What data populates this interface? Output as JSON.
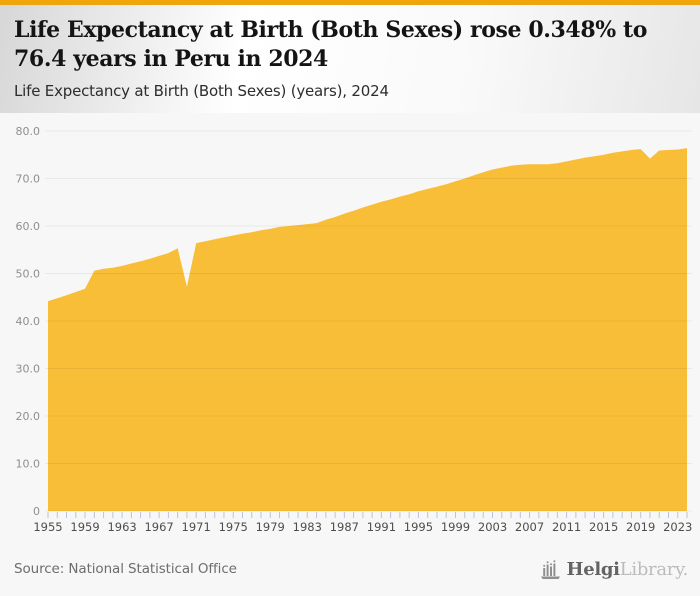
{
  "accent_color": "#efa50b",
  "header": {
    "title_lines": [
      "Life Expectancy at Birth (Both Sexes) rose 0.348% to",
      "76.4 years in Peru in 2024"
    ],
    "subtitle": "Life Expectancy at Birth (Both Sexes) (years), 2024"
  },
  "chart_data": {
    "type": "area",
    "title": "Life Expectancy at Birth (Both Sexes) rose 0.348% to 76.4 years in Peru in 2024",
    "series_name": "Life Expectancy at Birth (Both Sexes) (years)",
    "x": [
      1955,
      1956,
      1957,
      1958,
      1959,
      1960,
      1961,
      1962,
      1963,
      1964,
      1965,
      1966,
      1967,
      1968,
      1969,
      1970,
      1971,
      1972,
      1973,
      1974,
      1975,
      1976,
      1977,
      1978,
      1979,
      1980,
      1981,
      1982,
      1983,
      1984,
      1985,
      1986,
      1987,
      1988,
      1989,
      1990,
      1991,
      1992,
      1993,
      1994,
      1995,
      1996,
      1997,
      1998,
      1999,
      2000,
      2001,
      2002,
      2003,
      2004,
      2005,
      2006,
      2007,
      2008,
      2009,
      2010,
      2011,
      2012,
      2013,
      2014,
      2015,
      2016,
      2017,
      2018,
      2019,
      2020,
      2021,
      2022,
      2023,
      2024
    ],
    "values": [
      44.2,
      44.8,
      45.4,
      46.1,
      46.8,
      50.6,
      51.0,
      51.2,
      51.6,
      52.1,
      52.6,
      53.1,
      53.7,
      54.3,
      55.3,
      47.2,
      56.4,
      56.8,
      57.2,
      57.6,
      58.0,
      58.4,
      58.7,
      59.1,
      59.4,
      59.8,
      60.0,
      60.2,
      60.4,
      60.6,
      61.3,
      61.9,
      62.6,
      63.2,
      63.9,
      64.5,
      65.1,
      65.6,
      66.2,
      66.7,
      67.3,
      67.8,
      68.3,
      68.8,
      69.4,
      70.0,
      70.7,
      71.3,
      71.9,
      72.3,
      72.7,
      72.9,
      73.0,
      73.0,
      73.0,
      73.2,
      73.6,
      74.0,
      74.4,
      74.7,
      75.0,
      75.4,
      75.7,
      76.0,
      76.2,
      74.2,
      75.9,
      76.0,
      76.1,
      76.4
    ],
    "xlabel": "",
    "ylabel": "",
    "xlim": [
      1955,
      2024
    ],
    "ylim": [
      0,
      80
    ],
    "yticks": [
      {
        "value": 0,
        "label": "0"
      },
      {
        "value": 10,
        "label": "10.0"
      },
      {
        "value": 20,
        "label": "20.0"
      },
      {
        "value": 30,
        "label": "30.0"
      },
      {
        "value": 40,
        "label": "40.0"
      },
      {
        "value": 50,
        "label": "50.0"
      },
      {
        "value": 60,
        "label": "60.0"
      },
      {
        "value": 70,
        "label": "70.0"
      },
      {
        "value": 80,
        "label": "80.0"
      }
    ],
    "xticks": [
      1955,
      1959,
      1963,
      1967,
      1971,
      1975,
      1979,
      1983,
      1987,
      1991,
      1995,
      1999,
      2003,
      2007,
      2011,
      2015,
      2019,
      2023
    ],
    "grid": true,
    "legend": false,
    "fill_color": "#f9be38",
    "background_color": "#f7f7f7",
    "gridline_color": "rgba(0,0,0,0.06)",
    "tick_color": "#b9c5d9",
    "ylabel_color": "#8f8f8f",
    "xlabel_color": "#4d4d4d"
  },
  "footer": {
    "source": "Source: National Statistical Office",
    "brand_bold": "Helgi",
    "brand_light": "Library."
  }
}
